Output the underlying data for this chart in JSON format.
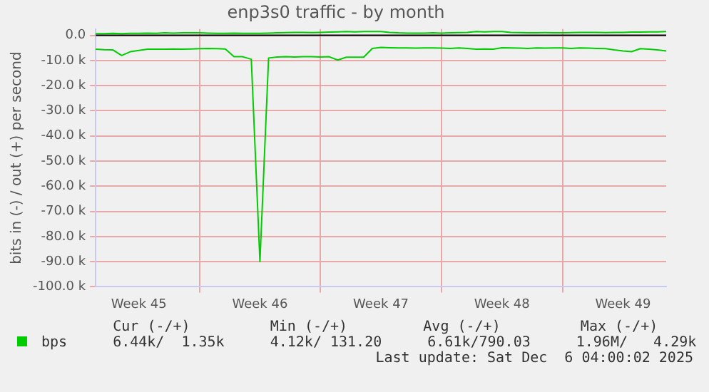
{
  "chart_data": {
    "type": "line",
    "title": "enp3s0 traffic - by month",
    "ylabel": "bits in (-) / out (+) per second",
    "categories": [
      null,
      null,
      null,
      null,
      null,
      "Week 45",
      null,
      null,
      null,
      null,
      null,
      null,
      null,
      null,
      null,
      null,
      null,
      null,
      null,
      "Week 46",
      null,
      null,
      null,
      null,
      null,
      null,
      null,
      null,
      null,
      null,
      null,
      null,
      null,
      "Week 47",
      null,
      null,
      null,
      null,
      null,
      null,
      null,
      null,
      null,
      null,
      null,
      null,
      null,
      "Week 48",
      null,
      null,
      null,
      null,
      null,
      null,
      null,
      null,
      null,
      null,
      null,
      null,
      null,
      "Week 49",
      null,
      null,
      null,
      null,
      null
    ],
    "ylim": [
      -100000,
      2500
    ],
    "yticks": [
      {
        "value": 0,
        "label": "0.0"
      },
      {
        "value": -10000,
        "label": "-10.0 k"
      },
      {
        "value": -20000,
        "label": "-20.0 k"
      },
      {
        "value": -30000,
        "label": "-30.0 k"
      },
      {
        "value": -40000,
        "label": "-40.0 k"
      },
      {
        "value": -50000,
        "label": "-50.0 k"
      },
      {
        "value": -60000,
        "label": "-60.0 k"
      },
      {
        "value": -70000,
        "label": "-70.0 k"
      },
      {
        "value": -80000,
        "label": "-80.0 k"
      },
      {
        "value": -90000,
        "label": "-90.0 k"
      },
      {
        "value": -100000,
        "label": "-100.0 k"
      }
    ],
    "grid": true,
    "legend": "bottom",
    "ref_lines": [
      {
        "axis": "y",
        "value": 0,
        "color": "#000000"
      }
    ],
    "series": [
      {
        "name": "bps",
        "color": "#00cc00",
        "values": [
          -5500,
          -5700,
          -5800,
          -8000,
          -6500,
          -6000,
          -5500,
          -5500,
          -5500,
          -5400,
          -5500,
          -5400,
          -5300,
          -5200,
          -5300,
          -5400,
          -8500,
          -8500,
          -9500,
          -90000,
          -9000,
          -8600,
          -8500,
          -8600,
          -8500,
          -8500,
          -8600,
          -8500,
          -9800,
          -8700,
          -8700,
          -8700,
          -5200,
          -4800,
          -4900,
          -5000,
          -5000,
          -5100,
          -5000,
          -5000,
          -5100,
          -5200,
          -5000,
          -5200,
          -5500,
          -5400,
          -5500,
          -4900,
          -5000,
          -5100,
          -5200,
          -5000,
          -5100,
          -5000,
          -5000,
          -5200,
          -5000,
          -5100,
          -5200,
          -5300,
          -5800,
          -6200,
          -6500,
          -5300,
          -5500,
          -5800,
          -6200
        ]
      },
      {
        "color": "#00cc00",
        "values": [
          700,
          700,
          800,
          700,
          800,
          800,
          900,
          800,
          1000,
          900,
          1000,
          1000,
          1000,
          900,
          800,
          800,
          900,
          800,
          800,
          800,
          900,
          1000,
          1100,
          1200,
          1200,
          1100,
          1200,
          1300,
          1400,
          1500,
          1400,
          1500,
          1500,
          1500,
          1200,
          1000,
          900,
          900,
          900,
          1000,
          900,
          1000,
          1100,
          1200,
          1500,
          1400,
          1500,
          1500,
          1200,
          1100,
          1000,
          1000,
          1100,
          1000,
          1000,
          1100,
          1200,
          1200,
          1200,
          1100,
          1200,
          1200,
          1300,
          1300,
          1400,
          1400,
          1500
        ]
      }
    ],
    "annotations": [
      "Cur (-/+)",
      "Min (-/+)",
      "Avg (-/+)",
      "Max (-/+)",
      "6.44k/  1.35k",
      "4.12k/ 131.20",
      "6.61k/790.03",
      "1.96M/   4.29k",
      "Last update: Sat Dec  6 04:00:02 2025"
    ]
  }
}
